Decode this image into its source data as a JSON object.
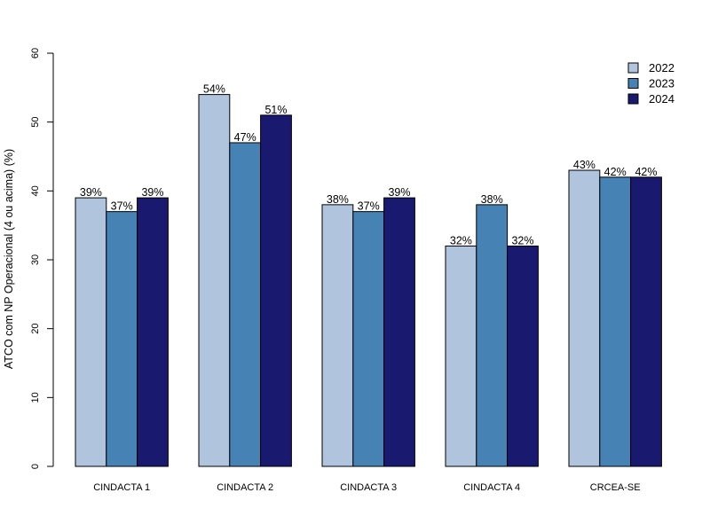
{
  "chart_data": {
    "type": "bar",
    "title": "",
    "xlabel": "",
    "ylabel": "ATCO com NP Operacional (4 ou acima) (%)",
    "ylim": [
      0,
      60
    ],
    "yticks": [
      0,
      10,
      20,
      30,
      40,
      50,
      60
    ],
    "categories": [
      "CINDACTA 1",
      "CINDACTA 2",
      "CINDACTA 3",
      "CINDACTA 4",
      "CRCEA-SE"
    ],
    "series": [
      {
        "name": "2022",
        "color": "#b0c4de",
        "values": [
          39,
          54,
          38,
          32,
          43
        ],
        "labels": [
          "39%",
          "54%",
          "38%",
          "32%",
          "43%"
        ]
      },
      {
        "name": "2023",
        "color": "#4682b4",
        "values": [
          37,
          47,
          37,
          38,
          42
        ],
        "labels": [
          "37%",
          "47%",
          "37%",
          "38%",
          "42%"
        ]
      },
      {
        "name": "2024",
        "color": "#191970",
        "values": [
          39,
          51,
          39,
          32,
          42
        ],
        "labels": [
          "39%",
          "51%",
          "39%",
          "32%",
          "42%"
        ]
      }
    ],
    "legend_position": "top-right",
    "grid": false
  }
}
